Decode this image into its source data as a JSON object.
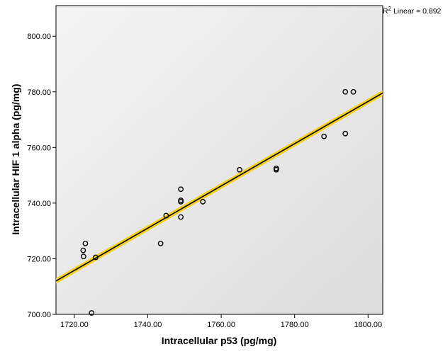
{
  "chart_data": {
    "type": "scatter",
    "xlabel": "Intracellular p53  (pg/mg)",
    "ylabel": "Intracellular HIF 1 alpha  (pg/mg)",
    "xlim": [
      1715,
      1804
    ],
    "ylim": [
      700,
      811
    ],
    "x_ticks": [
      1720,
      1740,
      1760,
      1780,
      1800
    ],
    "y_ticks": [
      700,
      720,
      740,
      760,
      780,
      800
    ],
    "x_tick_labels": [
      "1720.00",
      "1740.00",
      "1760.00",
      "1780.00",
      "1800.00"
    ],
    "y_tick_labels": [
      "700.00",
      "720.00",
      "740.00",
      "760.00",
      "780.00",
      "800.00"
    ],
    "grid": false,
    "points": [
      {
        "x": 1722.4,
        "y": 723.0
      },
      {
        "x": 1722.5,
        "y": 720.8
      },
      {
        "x": 1723.0,
        "y": 725.5
      },
      {
        "x": 1724.7,
        "y": 700.5
      },
      {
        "x": 1725.8,
        "y": 720.5
      },
      {
        "x": 1743.5,
        "y": 725.5
      },
      {
        "x": 1745.0,
        "y": 735.5
      },
      {
        "x": 1749.0,
        "y": 745.0
      },
      {
        "x": 1749.0,
        "y": 741.0
      },
      {
        "x": 1749.0,
        "y": 740.5
      },
      {
        "x": 1749.0,
        "y": 735.0
      },
      {
        "x": 1755.0,
        "y": 740.5
      },
      {
        "x": 1765.0,
        "y": 752.0
      },
      {
        "x": 1775.0,
        "y": 752.5
      },
      {
        "x": 1775.0,
        "y": 752.0
      },
      {
        "x": 1788.0,
        "y": 764.0
      },
      {
        "x": 1793.8,
        "y": 765.0
      },
      {
        "x": 1793.8,
        "y": 780.0
      },
      {
        "x": 1796.0,
        "y": 780.0
      }
    ],
    "fit_line": {
      "x": [
        1715,
        1804
      ],
      "y": [
        712.0,
        779.6
      ]
    },
    "r2_label": {
      "main": "R",
      "sup": "2",
      "text": " Linear = 0.892"
    },
    "colors": {
      "plot_background_start": "#f4f4f4",
      "plot_background_end": "#dcdcdc",
      "fit_line": "#000000",
      "fit_line_highlight": "#f5d020",
      "marker_stroke": "#000000"
    }
  }
}
